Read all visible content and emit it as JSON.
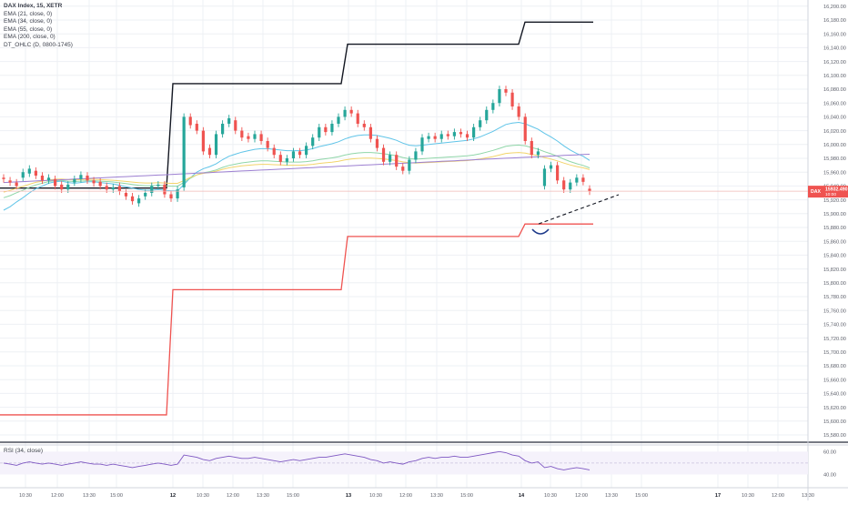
{
  "symbol": "DAX Index, 15, XETR",
  "indicators": [
    "EMA (21, close, 0)",
    "EMA (34, close, 0)",
    "EMA (55, close, 0)",
    "EMA (200, close, 0)",
    "DT_OHLC (D, 0800-1745)"
  ],
  "rsi_label": "RSI (34, close)",
  "colors": {
    "up": "#26a69a",
    "down": "#ef5350",
    "high_line": "#131722",
    "low_line": "#ef5350",
    "ema21": "#5fc4e8",
    "ema34": "#8fd6a8",
    "ema55": "#f2d46b",
    "ema200": "#9c7fd1",
    "rsi": "#7e57c2",
    "annotation": "#1e3a8a",
    "grid": "#eef0f4",
    "axis_text": "#5d606b"
  },
  "chart_data": {
    "type": "candlestick",
    "price_axis": {
      "ylim": [
        15570,
        16200
      ],
      "ticks": [
        "16,200.00",
        "16,180.00",
        "16,160.00",
        "16,140.00",
        "16,120.00",
        "16,100.00",
        "16,080.00",
        "16,060.00",
        "16,040.00",
        "16,020.00",
        "16,000.00",
        "15,980.00",
        "15,960.00",
        "15,940.00",
        "15,920.00",
        "15,900.00",
        "15,880.00",
        "15,860.00",
        "15,840.00",
        "15,820.00",
        "15,800.00",
        "15,780.00",
        "15,760.00",
        "15,740.00",
        "15,720.00",
        "15,700.00",
        "15,680.00",
        "15,660.00",
        "15,640.00",
        "15,620.00",
        "15,600.00",
        "15,580.00"
      ]
    },
    "time_axis": {
      "labels": [
        "10:30",
        "12:00",
        "13:30",
        "15:00",
        "12",
        "10:30",
        "12:00",
        "13:30",
        "15:00",
        "13",
        "10:30",
        "12:00",
        "13:30",
        "15:00",
        "14",
        "10:30",
        "12:00",
        "13:30",
        "15:00",
        "17",
        "10:30",
        "12:00",
        "13:30"
      ]
    },
    "last_price": {
      "symbol": "DAX",
      "value": "15932.490",
      "countdown": "10:00"
    },
    "candles_close": [
      15950,
      15945,
      15940,
      15960,
      15965,
      15955,
      15948,
      15952,
      15940,
      15935,
      15942,
      15950,
      15956,
      15948,
      15944,
      15940,
      15935,
      15938,
      15932,
      15925,
      15918,
      15922,
      15930,
      15940,
      15942,
      15928,
      15922,
      15935,
      16040,
      16028,
      16020,
      15990,
      15985,
      16015,
      16030,
      16038,
      16020,
      16010,
      16008,
      16015,
      16005,
      15995,
      15985,
      15975,
      15980,
      15990,
      15985,
      15998,
      16010,
      16025,
      16018,
      16030,
      16040,
      16050,
      16045,
      16030,
      16025,
      16008,
      15995,
      15975,
      15985,
      15968,
      15962,
      15978,
      15990,
      16010,
      16012,
      16008,
      16015,
      16012,
      16018,
      16015,
      16010,
      16025,
      16035,
      16050,
      16060,
      16080,
      16075,
      16055,
      16040,
      16005,
      15985,
      15990,
      15965,
      15970,
      15948,
      15935,
      15945,
      15952,
      15946,
      15932
    ],
    "candles_open": [
      15952,
      15948,
      15945,
      15952,
      15958,
      15962,
      15955,
      15948,
      15950,
      15942,
      15935,
      15945,
      15950,
      15955,
      15948,
      15946,
      15940,
      15935,
      15940,
      15930,
      15925,
      15915,
      15925,
      15930,
      15940,
      15942,
      15928,
      15922,
      15938,
      16040,
      16030,
      16020,
      15995,
      15985,
      16015,
      16030,
      16035,
      16020,
      16012,
      16008,
      16015,
      16005,
      15995,
      15985,
      15975,
      15980,
      15990,
      15985,
      15998,
      16010,
      16025,
      16018,
      16030,
      16040,
      16050,
      16045,
      16030,
      16025,
      16008,
      15995,
      15975,
      15985,
      15968,
      15962,
      15978,
      15990,
      16008,
      16012,
      16008,
      16015,
      16012,
      16018,
      16015,
      16010,
      16025,
      16035,
      16050,
      16060,
      16080,
      16075,
      16055,
      16040,
      16005,
      15985,
      15940,
      15965,
      15970,
      15948,
      15935,
      15945,
      15952,
      15936
    ],
    "session_high": [
      {
        "x0": 0,
        "x1": 183,
        "value": 15937
      },
      {
        "x0": 183,
        "x1": 375,
        "value": 16088
      },
      {
        "x0": 375,
        "x1": 570,
        "value": 16145
      },
      {
        "x0": 570,
        "x1": 652,
        "value": 16177
      }
    ],
    "session_low": [
      {
        "x0": 0,
        "x1": 183,
        "value": 15609
      },
      {
        "x0": 183,
        "x1": 375,
        "value": 15790
      },
      {
        "x0": 375,
        "x1": 570,
        "value": 15867
      },
      {
        "x0": 570,
        "x1": 652,
        "value": 15885
      }
    ],
    "ema21": [
      15905,
      15910,
      15917,
      15923,
      15930,
      15936,
      15940,
      15944,
      15946,
      15947,
      15945,
      15944,
      15945,
      15946,
      15946,
      15945,
      15944,
      15943,
      15941,
      15939,
      15937,
      15935,
      15934,
      15934,
      15935,
      15934,
      15933,
      15933,
      15942,
      15952,
      15960,
      15965,
      15968,
      15972,
      15978,
      15983,
      15986,
      15989,
      15991,
      15993,
      15994,
      15994,
      15993,
      15992,
      15991,
      15991,
      15991,
      15992,
      15994,
      15997,
      15999,
      16001,
      16004,
      16008,
      16011,
      16013,
      16014,
      16014,
      16013,
      16011,
      16009,
      16006,
      16002,
      15999,
      15998,
      15999,
      16000,
      16001,
      16002,
      16003,
      16004,
      16005,
      16006,
      16008,
      16011,
      16015,
      16019,
      16024,
      16029,
      16031,
      16032,
      16030,
      16026,
      16022,
      16016,
      16011,
      16005,
      15998,
      15992,
      15987,
      15983,
      15977
    ],
    "rsi": [
      50,
      49,
      48,
      50,
      51,
      50,
      49,
      50,
      49,
      48,
      49,
      50,
      51,
      50,
      49,
      49,
      48,
      49,
      48,
      47,
      46,
      47,
      48,
      49,
      50,
      49,
      48,
      49,
      57,
      56,
      55,
      53,
      52,
      54,
      55,
      56,
      55,
      54,
      54,
      55,
      54,
      53,
      52,
      51,
      52,
      53,
      52,
      53,
      54,
      55,
      55,
      56,
      57,
      58,
      57,
      56,
      55,
      53,
      52,
      50,
      51,
      50,
      49,
      51,
      52,
      54,
      55,
      54,
      55,
      55,
      56,
      55,
      55,
      56,
      57,
      58,
      59,
      60,
      59,
      57,
      56,
      52,
      50,
      51,
      46,
      47,
      45,
      44,
      45,
      46,
      45,
      44
    ],
    "rsi_axis": {
      "ticks": [
        "60.00",
        "40.00"
      ]
    },
    "grid": true
  }
}
